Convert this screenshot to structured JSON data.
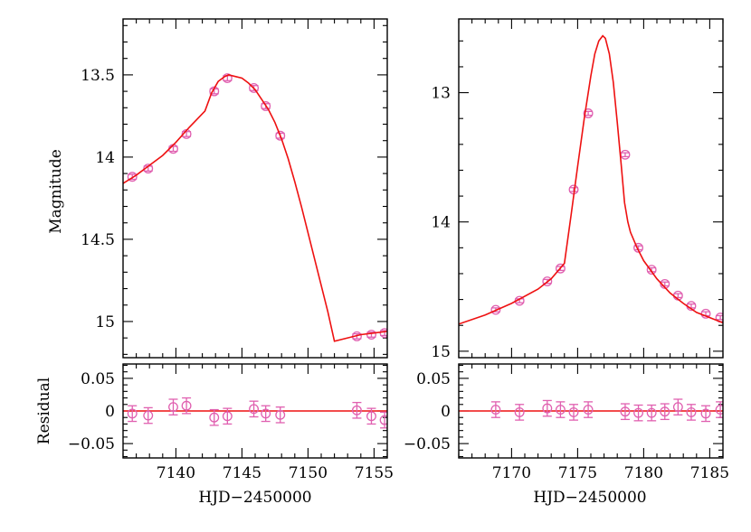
{
  "colors": {
    "model": "#ee1111",
    "points": "#e060b0",
    "frame": "#000000"
  },
  "labels": {
    "ylabel_top": "Magnitude",
    "ylabel_bottom": "Residual",
    "xlabel_left": "HJD−2450000",
    "xlabel_right": "HJD−2450000"
  },
  "chart_data": [
    {
      "type": "scatter",
      "panel": "left-top",
      "xlim": [
        7136.0,
        7156.0
      ],
      "ylim": [
        15.22,
        13.16
      ],
      "yaxis_inverted": true,
      "xticks": [
        7140,
        7145,
        7150,
        7155
      ],
      "yticks": [
        13.5,
        14,
        14.5,
        15
      ],
      "ytick_labels": [
        "13.5",
        "14",
        "14.5",
        "15"
      ],
      "ylabel": "Magnitude",
      "series": [
        {
          "kind": "points",
          "x": [
            7136.7,
            7137.9,
            7139.8,
            7140.8,
            7142.9,
            7143.9,
            7145.9,
            7146.8,
            7147.9,
            7153.7,
            7154.8,
            7155.8
          ],
          "y": [
            14.12,
            14.07,
            13.95,
            13.86,
            13.6,
            13.52,
            13.58,
            13.69,
            13.87,
            15.09,
            15.08,
            15.07
          ],
          "err": [
            0.015,
            0.015,
            0.015,
            0.015,
            0.015,
            0.015,
            0.015,
            0.015,
            0.015,
            0.015,
            0.015,
            0.015
          ]
        },
        {
          "kind": "model-line",
          "x": [
            7136.0,
            7137.0,
            7138.0,
            7139.0,
            7140.0,
            7141.0,
            7141.6,
            7142.2,
            7142.7,
            7143.2,
            7143.7,
            7144.0,
            7144.5,
            7145.0,
            7145.5,
            7146.0,
            7146.5,
            7147.0,
            7147.5,
            7148.0,
            7148.5,
            7149.0,
            7149.5,
            7150.0,
            7150.5,
            7151.0,
            7151.5,
            7152.0,
            7153.0,
            7154.0,
            7155.0,
            7156.0
          ],
          "y": [
            14.16,
            14.11,
            14.05,
            13.99,
            13.91,
            13.82,
            13.77,
            13.72,
            13.61,
            13.54,
            13.51,
            13.5,
            13.51,
            13.52,
            13.55,
            13.59,
            13.65,
            13.71,
            13.79,
            13.89,
            14.01,
            14.15,
            14.3,
            14.46,
            14.62,
            14.78,
            14.94,
            15.12,
            15.1,
            15.08,
            15.07,
            15.06
          ]
        }
      ]
    },
    {
      "type": "scatter",
      "panel": "right-top",
      "xlim": [
        7166.0,
        7186.0
      ],
      "ylim": [
        15.05,
        12.43
      ],
      "yaxis_inverted": true,
      "xticks": [
        7170,
        7175,
        7180,
        7185
      ],
      "yticks": [
        13,
        14,
        15
      ],
      "ytick_labels": [
        "13",
        "14",
        "15"
      ],
      "series": [
        {
          "kind": "points",
          "x": [
            7168.8,
            7170.6,
            7172.7,
            7173.7,
            7174.7,
            7175.8,
            7178.6,
            7179.6,
            7180.6,
            7181.6,
            7182.6,
            7183.6,
            7184.7,
            7185.8
          ],
          "y": [
            14.68,
            14.61,
            14.46,
            14.36,
            13.75,
            13.16,
            13.48,
            14.2,
            14.37,
            14.48,
            14.57,
            14.65,
            14.71,
            14.74
          ],
          "err": [
            0.015,
            0.015,
            0.015,
            0.015,
            0.015,
            0.015,
            0.015,
            0.015,
            0.015,
            0.015,
            0.015,
            0.015,
            0.015,
            0.015
          ]
        },
        {
          "kind": "model-line",
          "x": [
            7166.0,
            7168.0,
            7170.0,
            7172.0,
            7173.0,
            7174.0,
            7174.5,
            7175.0,
            7175.5,
            7176.0,
            7176.3,
            7176.6,
            7176.9,
            7177.1,
            7177.4,
            7177.7,
            7178.0,
            7178.3,
            7178.55,
            7178.8,
            7179.0,
            7179.5,
            7180.0,
            7181.0,
            7182.0,
            7183.0,
            7184.0,
            7185.0,
            7186.0
          ],
          "y": [
            14.79,
            14.72,
            14.63,
            14.52,
            14.44,
            14.32,
            13.95,
            13.57,
            13.2,
            12.87,
            12.7,
            12.6,
            12.56,
            12.58,
            12.7,
            12.92,
            13.23,
            13.56,
            13.85,
            14.0,
            14.08,
            14.2,
            14.3,
            14.44,
            14.55,
            14.63,
            14.7,
            14.74,
            14.78
          ]
        }
      ]
    },
    {
      "type": "scatter",
      "panel": "left-bottom",
      "xlim": [
        7136.0,
        7156.0
      ],
      "ylim": [
        -0.072,
        0.072
      ],
      "xticks": [
        7140,
        7145,
        7150,
        7155
      ],
      "xtick_labels": [
        "7140",
        "7145",
        "7150",
        "7155"
      ],
      "yticks": [
        -0.05,
        0,
        0.05
      ],
      "ytick_labels": [
        "−0.05",
        "0",
        "0.05"
      ],
      "xlabel": "HJD−2450000",
      "ylabel": "Residual",
      "series": [
        {
          "kind": "points",
          "x": [
            7136.7,
            7137.9,
            7139.8,
            7140.8,
            7142.9,
            7143.9,
            7145.9,
            7146.8,
            7147.9,
            7153.7,
            7154.8,
            7155.8
          ],
          "y": [
            -0.004,
            -0.007,
            0.006,
            0.008,
            -0.01,
            -0.008,
            0.003,
            -0.004,
            -0.006,
            0.001,
            -0.008,
            -0.014
          ],
          "err": [
            0.012,
            0.012,
            0.012,
            0.012,
            0.012,
            0.012,
            0.012,
            0.012,
            0.012,
            0.012,
            0.012,
            0.012
          ]
        }
      ]
    },
    {
      "type": "scatter",
      "panel": "right-bottom",
      "xlim": [
        7166.0,
        7186.0
      ],
      "ylim": [
        -0.072,
        0.072
      ],
      "xticks": [
        7170,
        7175,
        7180,
        7185
      ],
      "xtick_labels": [
        "7170",
        "7175",
        "7180",
        "7185"
      ],
      "yticks": [
        -0.05,
        0,
        0.05
      ],
      "ytick_labels": [
        "−0.05",
        "0",
        "0.05"
      ],
      "xlabel": "HJD−2450000",
      "series": [
        {
          "kind": "points",
          "x": [
            7168.8,
            7170.6,
            7172.7,
            7173.7,
            7174.7,
            7175.8,
            7178.6,
            7179.6,
            7180.6,
            7181.6,
            7182.6,
            7183.6,
            7184.7,
            7185.8
          ],
          "y": [
            0.002,
            -0.002,
            0.004,
            0.002,
            -0.002,
            0.002,
            -0.001,
            -0.003,
            -0.003,
            -0.001,
            0.006,
            -0.002,
            -0.004,
            0.002
          ],
          "err": [
            0.012,
            0.012,
            0.012,
            0.012,
            0.012,
            0.012,
            0.012,
            0.012,
            0.012,
            0.012,
            0.012,
            0.012,
            0.012,
            0.012
          ]
        }
      ]
    }
  ]
}
